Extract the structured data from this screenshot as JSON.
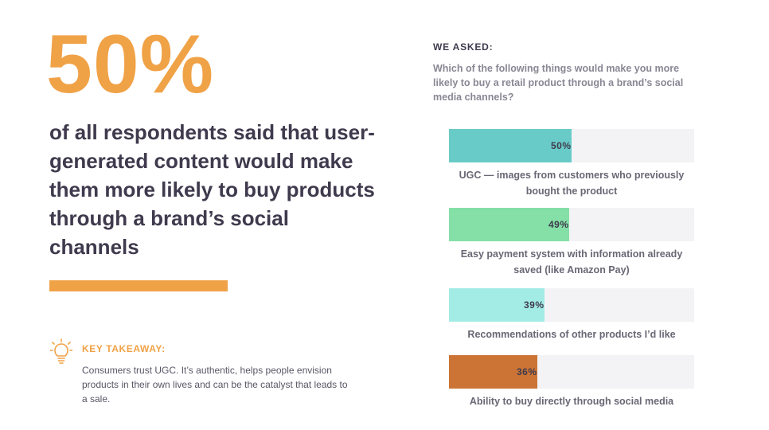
{
  "headline": {
    "big_stat": "50%",
    "text": "of all respondents said that user-generated content would make them more likely to buy products through a brand’s social channels"
  },
  "takeaway": {
    "icon": "lightbulb-icon",
    "title": "KEY TAKEAWAY:",
    "text": "Consumers trust UGC. It’s authentic, helps people envision products in their own lives and can be the catalyst that leads to a sale."
  },
  "survey": {
    "heading": "WE ASKED:",
    "question": "Which of the following things would make you more likely to buy a retail product through a brand’s social media channels?"
  },
  "colors": {
    "accent": "#F0A247",
    "text_dark": "#3F3A4D",
    "track": "#F3F3F6"
  },
  "chart_data": {
    "type": "bar",
    "orientation": "horizontal",
    "xlim": [
      0,
      100
    ],
    "unit": "%",
    "categories": [
      "UGC — images from customers who previously bought the product",
      "Easy payment system with information already saved (like Amazon Pay)",
      "Recommendations of other products I’d like",
      "Ability to buy directly through social media"
    ],
    "values": [
      50,
      49,
      39,
      36
    ],
    "value_labels": [
      "50%",
      "49%",
      "39%",
      "36%"
    ],
    "colors": [
      "#69CBC7",
      "#84E0A6",
      "#A3ECE6",
      "#CB7435"
    ],
    "grid": false,
    "legend": "none"
  }
}
